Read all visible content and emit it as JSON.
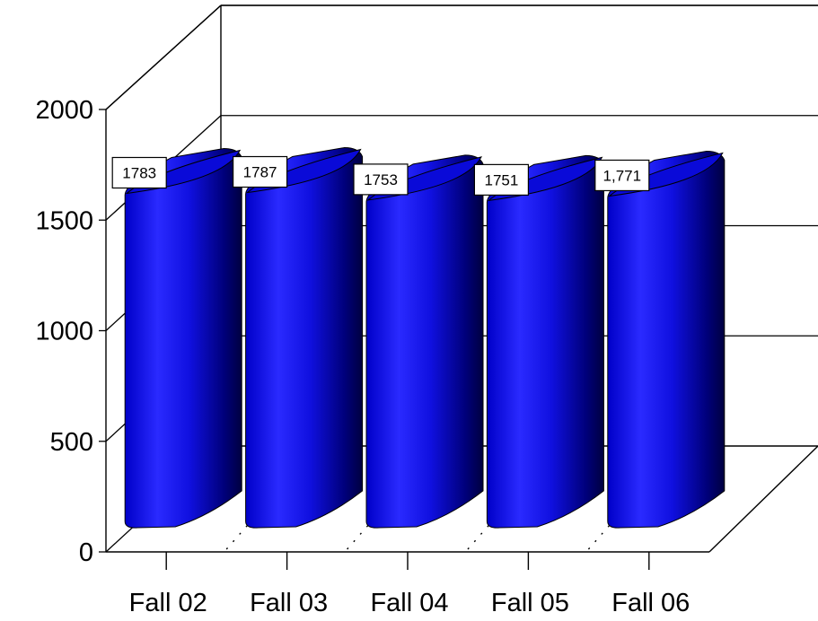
{
  "chart_data": {
    "type": "bar",
    "style": "3d-cylinder",
    "title": "",
    "xlabel": "",
    "ylabel": "",
    "categories": [
      "Fall 02",
      "Fall 03",
      "Fall 04",
      "Fall 05",
      "Fall 06"
    ],
    "series": [
      {
        "values": [
          1783,
          1787,
          1753,
          1751,
          1771
        ]
      }
    ],
    "data_labels": [
      "1783",
      "1787",
      "1753",
      "1751",
      "1,771"
    ],
    "ylim": [
      0,
      2000
    ],
    "yticks": [
      0,
      500,
      1000,
      1500,
      2000
    ],
    "ytick_labels": [
      "0",
      "500",
      "1000",
      "1500",
      "2000"
    ],
    "grid": true,
    "legend": "none",
    "colors": {
      "bar": "#1a1aff",
      "bar_dark": "#00004a",
      "bar_top": "#0a0ad0",
      "grid": "#000000",
      "label_bg": "#ffffff"
    }
  }
}
